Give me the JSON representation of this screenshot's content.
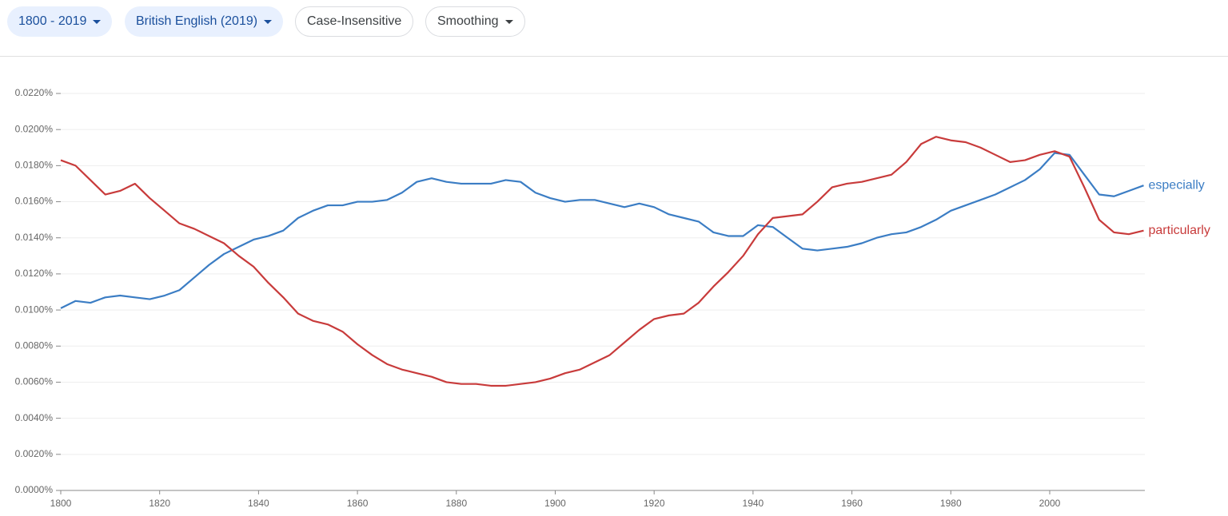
{
  "toolbar": {
    "chips": [
      "1800 - 2019",
      "British English (2019)",
      "Case-Insensitive",
      "Smoothing"
    ]
  },
  "chart_data": {
    "type": "line",
    "x": [
      1800,
      1803,
      1806,
      1809,
      1812,
      1815,
      1818,
      1821,
      1824,
      1827,
      1830,
      1833,
      1836,
      1839,
      1842,
      1845,
      1848,
      1851,
      1854,
      1857,
      1860,
      1863,
      1866,
      1869,
      1872,
      1875,
      1878,
      1881,
      1884,
      1887,
      1890,
      1893,
      1896,
      1899,
      1902,
      1905,
      1908,
      1911,
      1914,
      1917,
      1920,
      1923,
      1926,
      1929,
      1932,
      1935,
      1938,
      1941,
      1944,
      1947,
      1950,
      1953,
      1956,
      1959,
      1962,
      1965,
      1968,
      1971,
      1974,
      1977,
      1980,
      1983,
      1986,
      1989,
      1992,
      1995,
      1998,
      2001,
      2004,
      2007,
      2010,
      2013,
      2016,
      2019
    ],
    "series": [
      {
        "name": "especially",
        "color": "#3b7dc4",
        "values": [
          0.0101,
          0.0105,
          0.0104,
          0.0107,
          0.0108,
          0.0107,
          0.0106,
          0.0108,
          0.0111,
          0.0118,
          0.0125,
          0.0131,
          0.0135,
          0.0139,
          0.0141,
          0.0144,
          0.0151,
          0.0155,
          0.0158,
          0.0158,
          0.016,
          0.016,
          0.0161,
          0.0165,
          0.0171,
          0.0173,
          0.0171,
          0.017,
          0.017,
          0.017,
          0.0172,
          0.0171,
          0.0165,
          0.0162,
          0.016,
          0.0161,
          0.0161,
          0.0159,
          0.0157,
          0.0159,
          0.0157,
          0.0153,
          0.0151,
          0.0149,
          0.0143,
          0.0141,
          0.0141,
          0.0147,
          0.0146,
          0.014,
          0.0134,
          0.0133,
          0.0134,
          0.0135,
          0.0137,
          0.014,
          0.0142,
          0.0143,
          0.0146,
          0.015,
          0.0155,
          0.0158,
          0.0161,
          0.0164,
          0.0168,
          0.0172,
          0.0178,
          0.0187,
          0.0186,
          0.0175,
          0.0164,
          0.0163,
          0.0166,
          0.0169
        ]
      },
      {
        "name": "particularly",
        "color": "#c83b3b",
        "values": [
          0.0183,
          0.018,
          0.0172,
          0.0164,
          0.0166,
          0.017,
          0.0162,
          0.0155,
          0.0148,
          0.0145,
          0.0141,
          0.0137,
          0.013,
          0.0124,
          0.0115,
          0.0107,
          0.0098,
          0.0094,
          0.0092,
          0.0088,
          0.0081,
          0.0075,
          0.007,
          0.0067,
          0.0065,
          0.0063,
          0.006,
          0.0059,
          0.0059,
          0.0058,
          0.0058,
          0.0059,
          0.006,
          0.0062,
          0.0065,
          0.0067,
          0.0071,
          0.0075,
          0.0082,
          0.0089,
          0.0095,
          0.0097,
          0.0098,
          0.0104,
          0.0113,
          0.0121,
          0.013,
          0.0142,
          0.0151,
          0.0152,
          0.0153,
          0.016,
          0.0168,
          0.017,
          0.0171,
          0.0173,
          0.0175,
          0.0182,
          0.0192,
          0.0196,
          0.0194,
          0.0193,
          0.019,
          0.0186,
          0.0182,
          0.0183,
          0.0186,
          0.0188,
          0.0185,
          0.0168,
          0.015,
          0.0143,
          0.0142,
          0.0144
        ]
      }
    ],
    "xlim": [
      1800,
      2019
    ],
    "xticks": [
      1800,
      1820,
      1840,
      1860,
      1880,
      1900,
      1920,
      1940,
      1960,
      1980,
      2000
    ],
    "ylim": [
      0,
      0.022
    ],
    "yticks": [
      {
        "value": 0,
        "label": "0.0000%"
      },
      {
        "value": 0.002,
        "label": "0.0020%"
      },
      {
        "value": 0.004,
        "label": "0.0040%"
      },
      {
        "value": 0.006,
        "label": "0.0060%"
      },
      {
        "value": 0.008,
        "label": "0.0080%"
      },
      {
        "value": 0.01,
        "label": "0.0100%"
      },
      {
        "value": 0.012,
        "label": "0.0120%"
      },
      {
        "value": 0.014,
        "label": "0.0140%"
      },
      {
        "value": 0.016,
        "label": "0.0160%"
      },
      {
        "value": 0.018,
        "label": "0.0180%"
      },
      {
        "value": 0.02,
        "label": "0.0200%"
      },
      {
        "value": 0.022,
        "label": "0.0220%"
      }
    ],
    "grid": true
  }
}
